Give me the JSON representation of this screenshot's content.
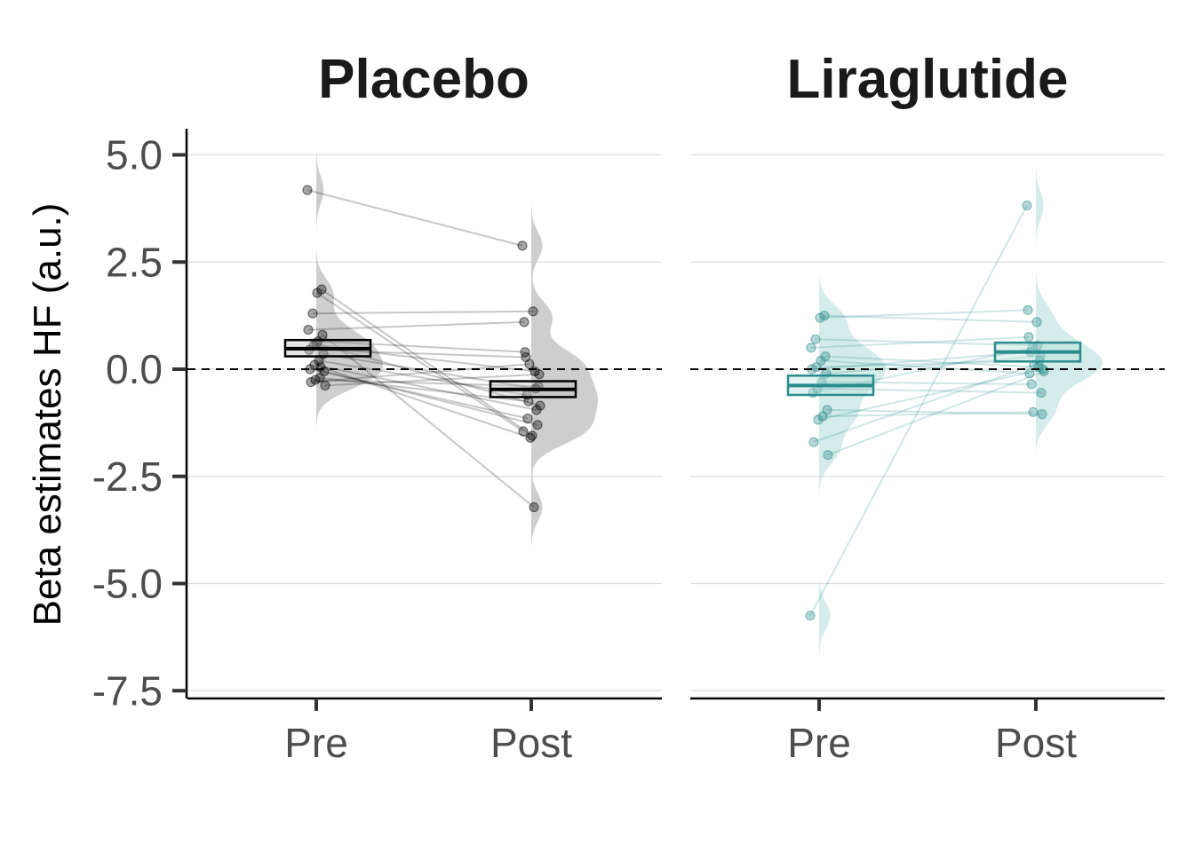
{
  "chart_data": {
    "type": "scatter",
    "ylabel": "Beta estimates HF (a.u.)",
    "xlabel": "",
    "ylim": [
      -7.8,
      5.6
    ],
    "yticks": [
      5.0,
      2.5,
      0.0,
      -2.5,
      -5.0,
      -7.5
    ],
    "ytick_labels": [
      "5.0",
      "2.5",
      "0.0",
      "-2.5",
      "-5.0",
      "-7.5"
    ],
    "categories": [
      "Pre",
      "Post"
    ],
    "reference_line": 0,
    "grid": "horizontal",
    "panels": [
      {
        "title": "Placebo",
        "color": "#000000",
        "fill": "#bdbdbd",
        "box": {
          "Pre": {
            "lower": 0.3,
            "mean": 0.48,
            "upper": 0.68
          },
          "Post": {
            "lower": -0.65,
            "mean": -0.47,
            "upper": -0.28
          }
        },
        "pairs": [
          [
            4.18,
            2.88
          ],
          [
            1.86,
            -1.55
          ],
          [
            1.78,
            -1.45
          ],
          [
            1.3,
            1.35
          ],
          [
            0.92,
            1.1
          ],
          [
            0.8,
            -3.22
          ],
          [
            0.65,
            0.4
          ],
          [
            0.55,
            -0.05
          ],
          [
            0.45,
            0.28
          ],
          [
            0.35,
            -0.45
          ],
          [
            0.2,
            -0.6
          ],
          [
            0.1,
            -0.95
          ],
          [
            0.0,
            -1.15
          ],
          [
            -0.05,
            -1.3
          ],
          [
            -0.2,
            -0.75
          ],
          [
            -0.25,
            -0.4
          ],
          [
            -0.3,
            0.12
          ],
          [
            -0.38,
            -0.12
          ],
          [
            0.05,
            -1.6
          ],
          [
            0.6,
            -0.85
          ]
        ]
      },
      {
        "title": "Liraglutide",
        "color": "#2a8c8c",
        "fill": "#b8e0dc",
        "box": {
          "Pre": {
            "lower": -0.6,
            "mean": -0.38,
            "upper": -0.15
          },
          "Post": {
            "lower": 0.18,
            "mean": 0.4,
            "upper": 0.62
          }
        },
        "pairs": [
          [
            -5.75,
            3.82
          ],
          [
            1.25,
            1.1
          ],
          [
            1.2,
            1.38
          ],
          [
            0.7,
            0.55
          ],
          [
            0.5,
            0.75
          ],
          [
            0.3,
            0.05
          ],
          [
            0.2,
            -0.1
          ],
          [
            0.05,
            0.2
          ],
          [
            0.0,
            0.4
          ],
          [
            -0.1,
            0.3
          ],
          [
            -0.3,
            -0.35
          ],
          [
            -0.45,
            -0.55
          ],
          [
            -0.55,
            0.5
          ],
          [
            -0.95,
            -1.05
          ],
          [
            -1.1,
            -1.0
          ],
          [
            -1.18,
            0.0
          ],
          [
            -1.7,
            0.1
          ],
          [
            -2.0,
            -0.05
          ]
        ]
      }
    ]
  }
}
